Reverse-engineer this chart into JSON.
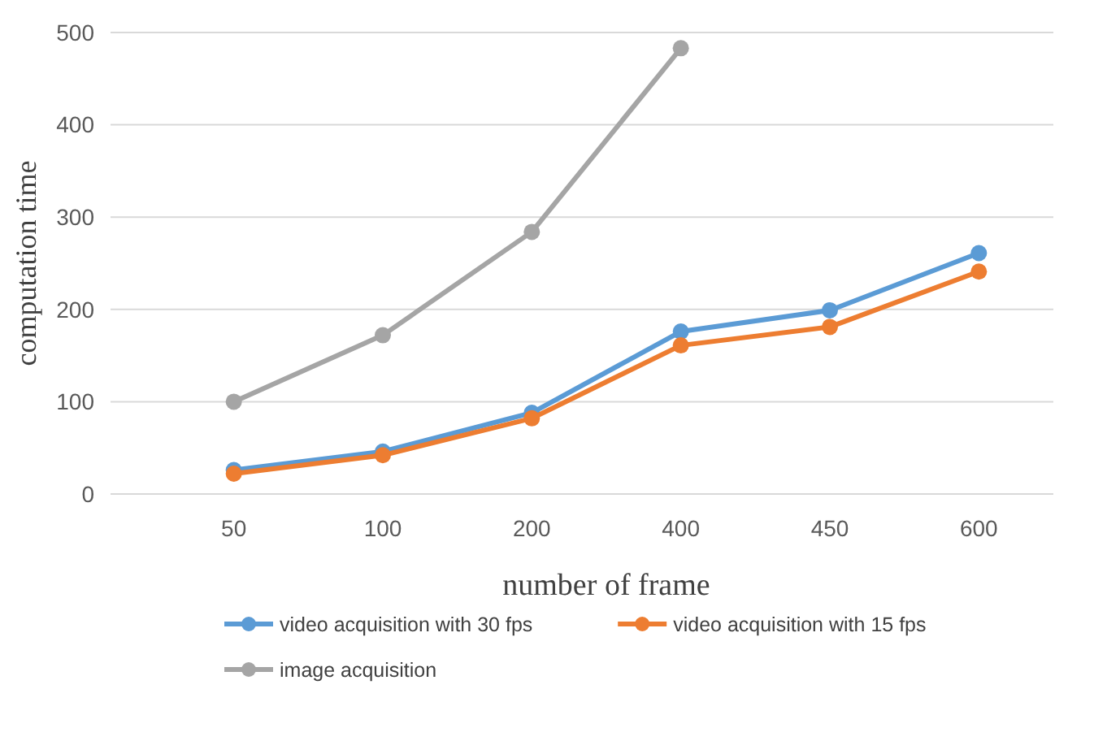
{
  "chart_data": {
    "type": "line",
    "xlabel": "number of frame",
    "ylabel": "computation time",
    "categories": [
      "50",
      "100",
      "200",
      "400",
      "450",
      "600"
    ],
    "series": [
      {
        "name": "video acquisition with 30 fps",
        "color": "#5b9bd5",
        "values": [
          26,
          46,
          88,
          176,
          199,
          261
        ]
      },
      {
        "name": "video acquisition with 15 fps",
        "color": "#ed7d31",
        "values": [
          22,
          42,
          82,
          161,
          181,
          241
        ]
      },
      {
        "name": "image acquisition",
        "color": "#a5a5a5",
        "values": [
          100,
          172,
          284,
          483,
          null,
          null
        ]
      }
    ],
    "ylim": [
      0,
      500
    ],
    "yticks": [
      0,
      100,
      200,
      300,
      400,
      500
    ],
    "grid": "y",
    "legend": "bottom",
    "marker": "circle",
    "line_style": "solid"
  }
}
